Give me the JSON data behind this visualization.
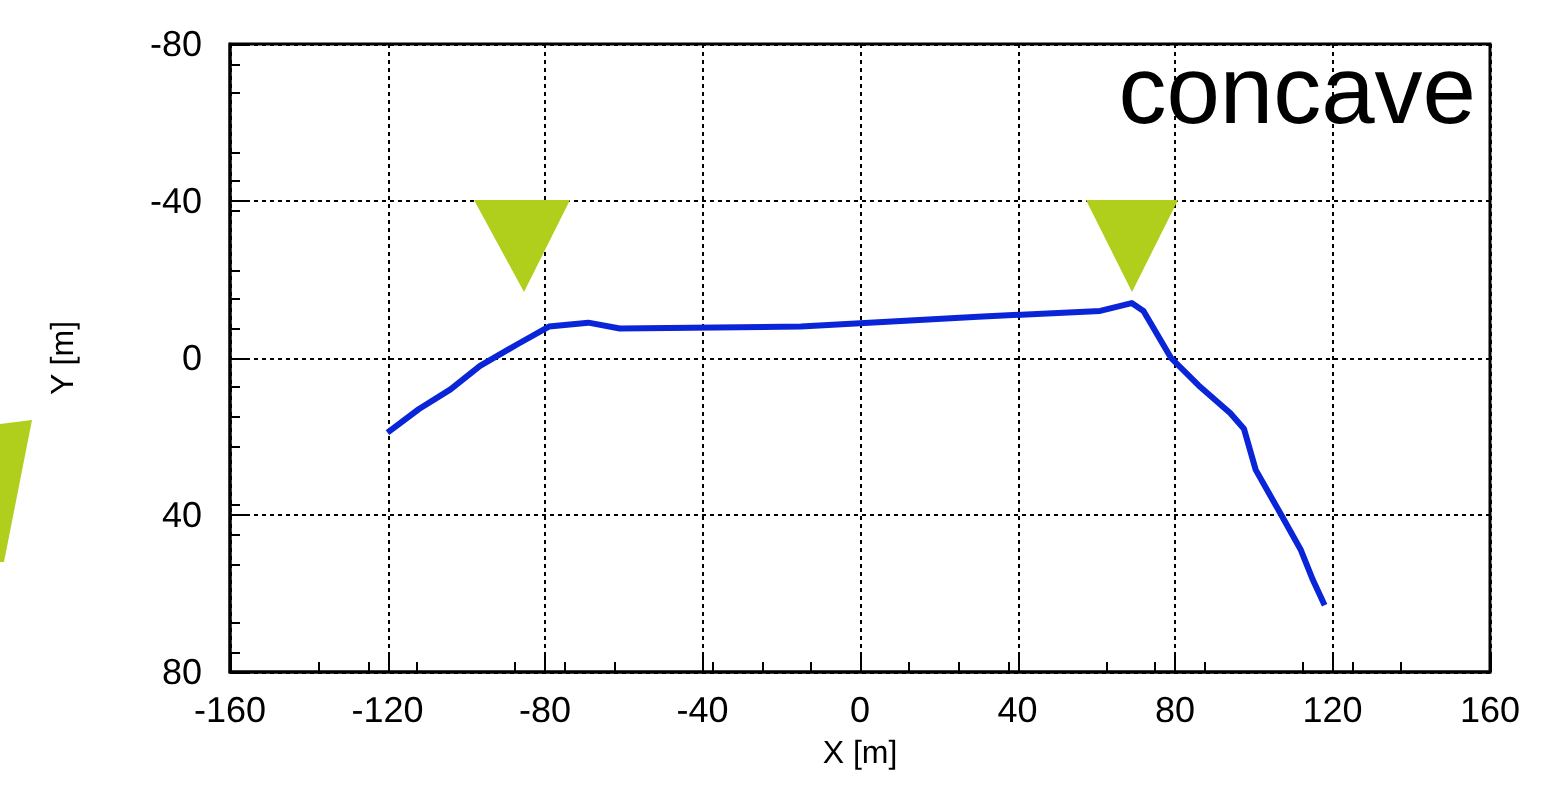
{
  "chart_data": {
    "type": "line",
    "xlabel": "X [m]",
    "ylabel": "Y [m]",
    "annotations": [
      "concave"
    ],
    "series": [
      {
        "color": "#0a24d8",
        "x": [
          -120,
          -112,
          -104,
          -96.5,
          -87,
          -79,
          -69,
          -61,
          -15,
          30,
          61,
          69,
          72,
          79,
          86,
          94,
          97.5,
          100.5,
          107,
          112,
          115,
          118
        ],
        "values": [
          19,
          13,
          8,
          2,
          -3.5,
          -8,
          -9,
          -7.5,
          -8,
          -10.5,
          -12,
          -14,
          -12,
          0,
          7,
          14,
          18,
          28.5,
          40,
          49,
          56.5,
          63
        ]
      }
    ],
    "xlim": [
      -160,
      160
    ],
    "xticks": [
      -160,
      -120,
      -80,
      -40,
      0,
      40,
      80,
      120,
      160
    ],
    "ylim": [
      80,
      -80
    ],
    "yticks": [
      -80,
      -40,
      0,
      40,
      80
    ],
    "grid": true,
    "marker": "none",
    "line_style": "solid"
  }
}
